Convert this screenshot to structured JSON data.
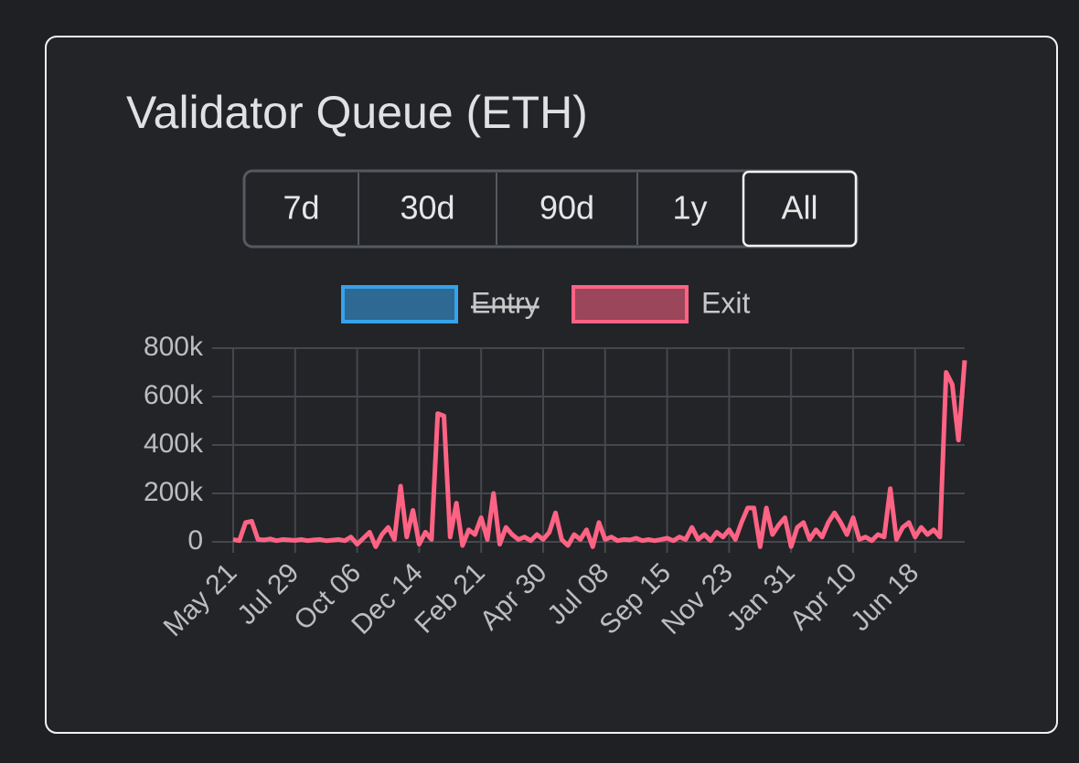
{
  "range_buttons": [
    {
      "label": "7d"
    },
    {
      "label": "30d"
    },
    {
      "label": "90d"
    },
    {
      "label": "1y"
    },
    {
      "label": "All",
      "selected": true
    }
  ],
  "chart_data": {
    "type": "line",
    "title": "Validator Queue (ETH)",
    "categories": [
      "May 21",
      null,
      null,
      null,
      null,
      null,
      null,
      null,
      null,
      null,
      "Jul 29",
      null,
      null,
      null,
      null,
      null,
      null,
      null,
      null,
      null,
      "Oct 06",
      null,
      null,
      null,
      null,
      null,
      null,
      null,
      null,
      null,
      "Dec 14",
      null,
      null,
      null,
      null,
      null,
      null,
      null,
      null,
      null,
      "Feb 21",
      null,
      null,
      null,
      null,
      null,
      null,
      null,
      null,
      null,
      "Apr 30",
      null,
      null,
      null,
      null,
      null,
      null,
      null,
      null,
      null,
      "Jul 08",
      null,
      null,
      null,
      null,
      null,
      null,
      null,
      null,
      null,
      "Sep 15",
      null,
      null,
      null,
      null,
      null,
      null,
      null,
      null,
      null,
      "Nov 23",
      null,
      null,
      null,
      null,
      null,
      null,
      null,
      null,
      null,
      "Jan 31",
      null,
      null,
      null,
      null,
      null,
      null,
      null,
      null,
      null,
      "Apr 10",
      null,
      null,
      null,
      null,
      null,
      null,
      null,
      null,
      null,
      "Jun 18",
      null,
      null,
      null,
      null,
      null,
      null,
      null,
      null
    ],
    "series": [
      {
        "name": "Entry",
        "color": "#36a2eb",
        "hidden": true
      },
      {
        "name": "Exit",
        "color": "#ff6384",
        "values": [
          10000,
          5000,
          80000,
          85000,
          10000,
          8000,
          12000,
          5000,
          10000,
          8000,
          6000,
          10000,
          5000,
          8000,
          10000,
          5000,
          7000,
          10000,
          5000,
          20000,
          -10000,
          15000,
          40000,
          -20000,
          30000,
          60000,
          10000,
          230000,
          20000,
          130000,
          -10000,
          40000,
          10000,
          530000,
          520000,
          20000,
          160000,
          -15000,
          50000,
          30000,
          100000,
          10000,
          200000,
          -10000,
          60000,
          30000,
          10000,
          20000,
          5000,
          30000,
          10000,
          40000,
          120000,
          10000,
          -15000,
          30000,
          10000,
          50000,
          -20000,
          80000,
          10000,
          20000,
          5000,
          10000,
          8000,
          15000,
          5000,
          10000,
          5000,
          10000,
          15000,
          5000,
          20000,
          10000,
          60000,
          10000,
          30000,
          5000,
          40000,
          20000,
          50000,
          10000,
          80000,
          140000,
          140000,
          -20000,
          140000,
          30000,
          70000,
          100000,
          -20000,
          60000,
          80000,
          10000,
          50000,
          20000,
          80000,
          120000,
          80000,
          30000,
          100000,
          10000,
          20000,
          5000,
          30000,
          20000,
          220000,
          10000,
          60000,
          80000,
          20000,
          60000,
          30000,
          50000,
          20000,
          700000,
          650000,
          420000,
          750000
        ]
      }
    ],
    "ylim": [
      0,
      800000
    ],
    "yticks": [
      0,
      {
        "value": 200000,
        "label": "200k"
      },
      {
        "value": 400000,
        "label": "400k"
      },
      {
        "value": 600000,
        "label": "600k"
      },
      {
        "value": 800000,
        "label": "800k"
      }
    ],
    "grid": true
  }
}
